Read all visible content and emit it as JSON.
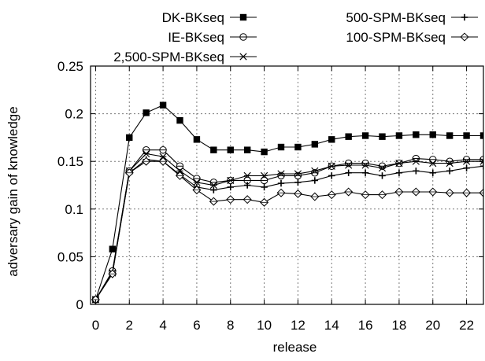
{
  "chart_data": {
    "type": "line",
    "xlabel": "release",
    "ylabel": "adversary gain of knowledge",
    "xlim": [
      -0.3,
      23
    ],
    "ylim": [
      0,
      0.25
    ],
    "x_ticks": [
      0,
      2,
      4,
      6,
      8,
      10,
      12,
      14,
      16,
      18,
      20,
      22
    ],
    "y_ticks": [
      0,
      0.05,
      0.1,
      0.15,
      0.2,
      0.25
    ],
    "x_tick_labels": [
      "0",
      "2",
      "4",
      "6",
      "8",
      "10",
      "12",
      "14",
      "16",
      "18",
      "20",
      "22"
    ],
    "y_tick_labels": [
      "0",
      "0.05",
      "0.1",
      "0.15",
      "0.2",
      "0.25"
    ],
    "grid": true,
    "legend_position": "top",
    "x": [
      0,
      1,
      2,
      3,
      4,
      5,
      6,
      7,
      8,
      9,
      10,
      11,
      12,
      13,
      14,
      15,
      16,
      17,
      18,
      19,
      20,
      21,
      22,
      23
    ],
    "series": [
      {
        "name": "DK-BKseq",
        "marker": "filled-square",
        "values": [
          0.005,
          0.058,
          0.175,
          0.201,
          0.209,
          0.193,
          0.173,
          0.162,
          0.162,
          0.162,
          0.16,
          0.165,
          0.165,
          0.168,
          0.173,
          0.176,
          0.177,
          0.176,
          0.177,
          0.178,
          0.178,
          0.177,
          0.177,
          0.177
        ]
      },
      {
        "name": "IE-BKseq",
        "marker": "circle-minus",
        "values": [
          0.005,
          0.035,
          0.14,
          0.162,
          0.162,
          0.145,
          0.132,
          0.128,
          0.13,
          0.13,
          0.13,
          0.135,
          0.135,
          0.138,
          0.145,
          0.148,
          0.148,
          0.145,
          0.148,
          0.153,
          0.152,
          0.15,
          0.152,
          0.152
        ]
      },
      {
        "name": "2,500-SPM-BKseq",
        "marker": "asterisk",
        "values": [
          0.005,
          0.033,
          0.14,
          0.158,
          0.155,
          0.14,
          0.128,
          0.125,
          0.13,
          0.135,
          0.135,
          0.137,
          0.137,
          0.14,
          0.145,
          0.146,
          0.146,
          0.143,
          0.148,
          0.15,
          0.148,
          0.148,
          0.15,
          0.15
        ]
      },
      {
        "name": "500-SPM-BKseq",
        "marker": "plus",
        "values": [
          0.005,
          0.033,
          0.138,
          0.152,
          0.15,
          0.136,
          0.123,
          0.12,
          0.123,
          0.125,
          0.123,
          0.127,
          0.128,
          0.13,
          0.135,
          0.138,
          0.138,
          0.135,
          0.138,
          0.14,
          0.138,
          0.14,
          0.143,
          0.145
        ]
      },
      {
        "name": "100-SPM-BKseq",
        "marker": "diamond",
        "values": [
          0.005,
          0.032,
          0.138,
          0.15,
          0.15,
          0.135,
          0.12,
          0.108,
          0.11,
          0.11,
          0.107,
          0.117,
          0.116,
          0.113,
          0.115,
          0.118,
          0.115,
          0.115,
          0.118,
          0.118,
          0.118,
          0.117,
          0.117,
          0.117
        ]
      }
    ]
  }
}
